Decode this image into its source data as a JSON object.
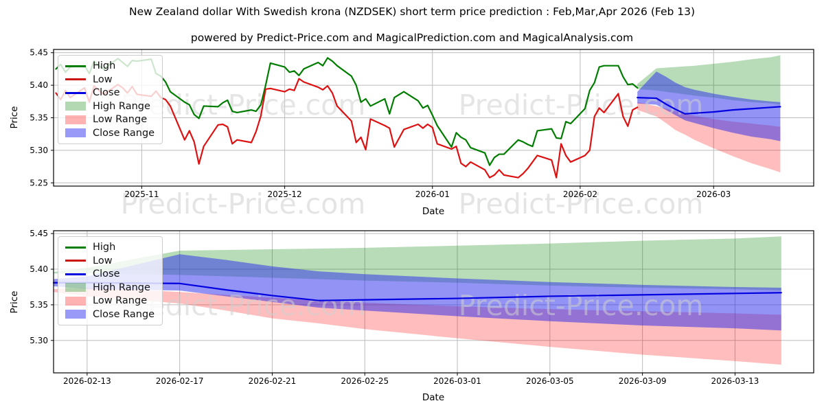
{
  "header": {
    "title": "New Zealand dollar With Swedish krona (NZDSEK) short term price prediction : Feb,Mar,Apr 2026 (Feb 13)",
    "subtitle": "powered by Predict-Price.com and MagicalPrediction.com and MagicalAnalysis.com"
  },
  "watermark": {
    "text": "Predict-Price.com"
  },
  "palette": {
    "high": "#007d00",
    "low": "#dd1111",
    "close": "#0000e0",
    "high_band": "rgba(0,128,0,0.28)",
    "low_band": "rgba(255,0,0,0.26)",
    "close_band": "rgba(40,40,235,0.5)",
    "grid": "#bbbbbb",
    "spine": "#000000",
    "watermark_color": "#cfcfcf"
  },
  "legend": {
    "items": [
      {
        "label": "High",
        "kind": "line",
        "color": "#007d00"
      },
      {
        "label": "Low",
        "kind": "line",
        "color": "#cc1414"
      },
      {
        "label": "Close",
        "kind": "line",
        "color": "#0000e0"
      },
      {
        "label": "High Range",
        "kind": "patch",
        "color": "rgba(0,128,0,0.3)"
      },
      {
        "label": "Low Range",
        "kind": "patch",
        "color": "rgba(255,0,0,0.3)"
      },
      {
        "label": "Close Range",
        "kind": "patch",
        "color": "rgba(70,70,240,0.55)"
      }
    ]
  },
  "chart_data": [
    {
      "type": "line",
      "title": "",
      "xlabel": "Date",
      "ylabel": "Price",
      "grid": true,
      "legend_position": "upper left",
      "x_unit": "days since 2025-10-14",
      "date_range": [
        "2025-10-14",
        "2026-03-15"
      ],
      "xlim": [
        -0.5,
        159.0
      ],
      "ylim": [
        5.245,
        5.455
      ],
      "x_ticks": [
        {
          "d": 18,
          "label": "2025-11"
        },
        {
          "d": 48,
          "label": "2025-12"
        },
        {
          "d": 79,
          "label": "2026-01"
        },
        {
          "d": 110,
          "label": "2026-02"
        },
        {
          "d": 138,
          "label": "2026-03"
        }
      ],
      "y_ticks": [
        {
          "v": 5.25,
          "label": "5.25"
        },
        {
          "v": 5.3,
          "label": "5.30"
        },
        {
          "v": 5.35,
          "label": "5.35"
        },
        {
          "v": 5.4,
          "label": "5.40"
        },
        {
          "v": 5.45,
          "label": "5.45"
        }
      ],
      "series": [
        {
          "name": "High",
          "color_key": "high",
          "d": [
            0,
            1,
            2,
            3,
            6,
            7,
            8,
            9,
            10,
            13,
            14,
            15,
            16,
            17,
            20,
            21,
            22,
            23,
            24,
            27,
            28,
            29,
            30,
            31,
            34,
            35,
            36,
            37,
            38,
            41,
            42,
            43,
            44,
            45,
            48,
            49,
            50,
            51,
            52,
            55,
            56,
            57,
            58,
            59,
            62,
            63,
            64,
            65,
            66,
            69,
            70,
            71,
            73,
            76,
            77,
            78,
            79,
            80,
            83,
            84,
            85,
            86,
            87,
            90,
            91,
            92,
            93,
            94,
            97,
            98,
            99,
            100,
            101,
            104,
            105,
            106,
            107,
            108,
            111,
            112,
            113,
            114,
            115,
            118,
            119,
            120,
            121,
            122
          ],
          "v": [
            5.425,
            5.432,
            5.42,
            5.428,
            5.43,
            5.418,
            5.437,
            5.43,
            5.425,
            5.441,
            5.435,
            5.429,
            5.438,
            5.437,
            5.44,
            5.418,
            5.414,
            5.405,
            5.39,
            5.374,
            5.37,
            5.355,
            5.349,
            5.368,
            5.367,
            5.373,
            5.377,
            5.36,
            5.358,
            5.362,
            5.36,
            5.37,
            5.4,
            5.434,
            5.428,
            5.42,
            5.422,
            5.415,
            5.425,
            5.435,
            5.43,
            5.442,
            5.437,
            5.43,
            5.414,
            5.4,
            5.374,
            5.379,
            5.368,
            5.379,
            5.356,
            5.381,
            5.39,
            5.376,
            5.365,
            5.369,
            5.354,
            5.338,
            5.305,
            5.327,
            5.32,
            5.316,
            5.304,
            5.296,
            5.277,
            5.289,
            5.294,
            5.294,
            5.316,
            5.313,
            5.309,
            5.306,
            5.33,
            5.333,
            5.319,
            5.318,
            5.344,
            5.341,
            5.364,
            5.392,
            5.404,
            5.428,
            5.43,
            5.43,
            5.413,
            5.401,
            5.402,
            5.396
          ]
        },
        {
          "name": "Low",
          "color_key": "low",
          "d": [
            0,
            1,
            2,
            3,
            6,
            7,
            8,
            9,
            10,
            13,
            14,
            15,
            16,
            17,
            20,
            21,
            22,
            23,
            24,
            27,
            28,
            29,
            30,
            31,
            34,
            35,
            36,
            37,
            38,
            41,
            42,
            43,
            44,
            45,
            48,
            49,
            50,
            51,
            52,
            55,
            56,
            57,
            58,
            59,
            62,
            63,
            64,
            65,
            66,
            69,
            70,
            71,
            73,
            76,
            77,
            78,
            79,
            80,
            83,
            84,
            85,
            86,
            87,
            90,
            91,
            92,
            93,
            94,
            97,
            98,
            99,
            100,
            101,
            104,
            105,
            106,
            107,
            108,
            111,
            112,
            113,
            114,
            115,
            118,
            119,
            120,
            121,
            122
          ],
          "v": [
            5.388,
            5.378,
            5.392,
            5.381,
            5.396,
            5.374,
            5.399,
            5.392,
            5.386,
            5.401,
            5.396,
            5.388,
            5.398,
            5.386,
            5.383,
            5.391,
            5.381,
            5.378,
            5.368,
            5.316,
            5.33,
            5.313,
            5.279,
            5.306,
            5.339,
            5.34,
            5.336,
            5.31,
            5.316,
            5.312,
            5.329,
            5.353,
            5.394,
            5.395,
            5.39,
            5.394,
            5.392,
            5.41,
            5.405,
            5.397,
            5.393,
            5.399,
            5.388,
            5.368,
            5.345,
            5.312,
            5.32,
            5.301,
            5.348,
            5.338,
            5.334,
            5.305,
            5.332,
            5.34,
            5.334,
            5.34,
            5.335,
            5.31,
            5.302,
            5.306,
            5.28,
            5.275,
            5.282,
            5.27,
            5.258,
            5.262,
            5.27,
            5.262,
            5.258,
            5.264,
            5.272,
            5.282,
            5.292,
            5.285,
            5.258,
            5.31,
            5.292,
            5.282,
            5.292,
            5.3,
            5.352,
            5.365,
            5.358,
            5.387,
            5.352,
            5.337,
            5.362,
            5.366
          ]
        },
        {
          "name": "Close (prediction)",
          "color_key": "close",
          "dates": [
            "2026-02-13",
            "2026-02-17",
            "2026-02-19",
            "2026-02-21",
            "2026-02-23",
            "2026-02-25",
            "2026-03-01",
            "2026-03-05",
            "2026-03-09",
            "2026-03-13",
            "2026-03-15"
          ],
          "d": [
            122,
            126,
            128,
            130,
            132,
            134,
            138,
            142,
            146,
            150,
            152
          ],
          "v": [
            5.381,
            5.38,
            5.371,
            5.363,
            5.356,
            5.357,
            5.359,
            5.362,
            5.364,
            5.366,
            5.367
          ]
        }
      ],
      "bands": [
        {
          "name": "High Range",
          "color_key": "high_band",
          "d": [
            122,
            126,
            128,
            130,
            132,
            134,
            138,
            142,
            146,
            150,
            152
          ],
          "hi": [
            5.402,
            5.426,
            5.427,
            5.428,
            5.429,
            5.43,
            5.433,
            5.436,
            5.44,
            5.443,
            5.446
          ],
          "lo": [
            5.394,
            5.392,
            5.39,
            5.388,
            5.386,
            5.384,
            5.381,
            5.377,
            5.374,
            5.372,
            5.37
          ]
        },
        {
          "name": "Low Range",
          "color_key": "low_band",
          "d": [
            122,
            126,
            128,
            130,
            132,
            134,
            138,
            142,
            146,
            150,
            152
          ],
          "hi": [
            5.374,
            5.368,
            5.364,
            5.36,
            5.356,
            5.353,
            5.348,
            5.344,
            5.341,
            5.338,
            5.336
          ],
          "lo": [
            5.362,
            5.352,
            5.342,
            5.331,
            5.324,
            5.316,
            5.303,
            5.291,
            5.28,
            5.271,
            5.266
          ]
        },
        {
          "name": "Close Range",
          "color_key": "close_band",
          "d": [
            122,
            126,
            128,
            130,
            132,
            134,
            138,
            142,
            146,
            150,
            152
          ],
          "hi": [
            5.39,
            5.421,
            5.413,
            5.404,
            5.397,
            5.393,
            5.387,
            5.382,
            5.378,
            5.375,
            5.374
          ],
          "lo": [
            5.372,
            5.37,
            5.362,
            5.354,
            5.346,
            5.342,
            5.334,
            5.327,
            5.321,
            5.317,
            5.314
          ]
        }
      ]
    },
    {
      "type": "line",
      "title": "",
      "xlabel": "Date",
      "ylabel": "Price",
      "grid": true,
      "legend_position": "upper left",
      "x_unit": "days since 2025-10-14",
      "date_range": [
        "2026-02-13",
        "2026-03-15"
      ],
      "xlim": [
        120.55,
        153.4
      ],
      "ylim": [
        5.2545,
        5.454
      ],
      "x_ticks": [
        {
          "d": 122,
          "label": "2026-02-13"
        },
        {
          "d": 126,
          "label": "2026-02-17"
        },
        {
          "d": 130,
          "label": "2026-02-21"
        },
        {
          "d": 134,
          "label": "2026-02-25"
        },
        {
          "d": 138,
          "label": "2026-03-01"
        },
        {
          "d": 142,
          "label": "2026-03-05"
        },
        {
          "d": 146,
          "label": "2026-03-09"
        },
        {
          "d": 150,
          "label": "2026-03-13"
        }
      ],
      "y_ticks": [
        {
          "v": 5.3,
          "label": "5.30"
        },
        {
          "v": 5.35,
          "label": "5.35"
        },
        {
          "v": 5.4,
          "label": "5.40"
        },
        {
          "v": 5.45,
          "label": "5.45"
        }
      ],
      "series": [
        {
          "name": "Close (prediction)",
          "color_key": "close",
          "d": [
            120.55,
            122,
            126,
            128,
            130,
            132,
            134,
            138,
            142,
            146,
            150,
            152
          ],
          "v": [
            5.381,
            5.381,
            5.38,
            5.371,
            5.363,
            5.356,
            5.357,
            5.359,
            5.362,
            5.364,
            5.366,
            5.367
          ]
        }
      ],
      "bands": [
        {
          "name": "High Range",
          "color_key": "high_band",
          "d": [
            120.55,
            122,
            126,
            128,
            130,
            132,
            134,
            138,
            142,
            146,
            150,
            152
          ],
          "hi": [
            5.396,
            5.402,
            5.426,
            5.427,
            5.428,
            5.429,
            5.43,
            5.433,
            5.436,
            5.44,
            5.443,
            5.446
          ],
          "lo": [
            5.394,
            5.394,
            5.392,
            5.39,
            5.388,
            5.386,
            5.384,
            5.381,
            5.377,
            5.374,
            5.372,
            5.37
          ]
        },
        {
          "name": "Low Range",
          "color_key": "low_band",
          "d": [
            120.55,
            122,
            126,
            128,
            130,
            132,
            134,
            138,
            142,
            146,
            150,
            152
          ],
          "hi": [
            5.372,
            5.374,
            5.368,
            5.364,
            5.36,
            5.356,
            5.353,
            5.348,
            5.344,
            5.341,
            5.338,
            5.336
          ],
          "lo": [
            5.368,
            5.362,
            5.352,
            5.342,
            5.331,
            5.324,
            5.316,
            5.303,
            5.291,
            5.28,
            5.271,
            5.266
          ]
        },
        {
          "name": "Close Range",
          "color_key": "close_band",
          "d": [
            120.55,
            122,
            126,
            128,
            130,
            132,
            134,
            138,
            142,
            146,
            150,
            152
          ],
          "hi": [
            5.386,
            5.39,
            5.421,
            5.413,
            5.404,
            5.397,
            5.393,
            5.387,
            5.382,
            5.378,
            5.375,
            5.374
          ],
          "lo": [
            5.376,
            5.372,
            5.37,
            5.362,
            5.354,
            5.346,
            5.342,
            5.334,
            5.327,
            5.321,
            5.317,
            5.314
          ]
        }
      ]
    }
  ]
}
